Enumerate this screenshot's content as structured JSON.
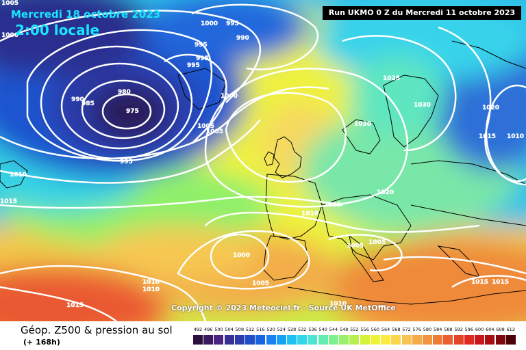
{
  "header": {
    "date": "Mercredi 18 octobre 2023",
    "local_time": "2:00 locale",
    "run_info": "Run UKMO 0 Z du Mercredi 11 octobre 2023"
  },
  "copyright": "Copyright © 2023 Meteociel.fr - Source UK MetOffice",
  "footer": {
    "field": "Géop. Z500 & pression au sol",
    "lead_time": "(+ 168h)"
  },
  "scale": {
    "labels": [
      "492",
      "496",
      "500",
      "504",
      "508",
      "512",
      "516",
      "520",
      "524",
      "528",
      "532",
      "536",
      "540",
      "544",
      "548",
      "552",
      "556",
      "560",
      "564",
      "568",
      "572",
      "576",
      "580",
      "584",
      "588",
      "592",
      "596",
      "600",
      "604",
      "608",
      "612"
    ],
    "colors": [
      "#2a0f3c",
      "#3a1a5e",
      "#4b2380",
      "#3a2f95",
      "#2b3cac",
      "#1f4fc8",
      "#1a63e0",
      "#1a82f0",
      "#16a2f4",
      "#1fc0f2",
      "#35d6ea",
      "#4fe3d2",
      "#63ebb2",
      "#7df08f",
      "#9af06c",
      "#b8f050",
      "#d6f23c",
      "#eef238",
      "#fbea40",
      "#fad64c",
      "#f7c352",
      "#f4ab4a",
      "#f19440",
      "#ee7c38",
      "#ea6030",
      "#e54428",
      "#dc2a22",
      "#c8161c",
      "#a80d14",
      "#7c060c",
      "#4a0206"
    ]
  },
  "isobars": [
    {
      "id": "1000-w",
      "value": "1000"
    },
    {
      "id": "1005-nw",
      "value": "1005"
    },
    {
      "id": "1000-n",
      "value": "1000"
    },
    {
      "id": "995-n1",
      "value": "995"
    },
    {
      "id": "990-n",
      "value": "990"
    },
    {
      "id": "995-n2",
      "value": "995"
    },
    {
      "id": "995-n3",
      "value": "995"
    },
    {
      "id": "995-n4",
      "value": "995"
    },
    {
      "id": "990-low",
      "value": "990"
    },
    {
      "id": "985-low",
      "value": "985"
    },
    {
      "id": "980-low",
      "value": "980"
    },
    {
      "id": "975-low",
      "value": "975"
    },
    {
      "id": "1000-mid",
      "value": "1000"
    },
    {
      "id": "1005-mid1",
      "value": "1005"
    },
    {
      "id": "1005-mid2",
      "value": "1005"
    },
    {
      "id": "995-sw",
      "value": "995"
    },
    {
      "id": "1010-w",
      "value": "1010"
    },
    {
      "id": "1015-w",
      "value": "1015"
    },
    {
      "id": "1025-scand",
      "value": "1025"
    },
    {
      "id": "1030-scand1",
      "value": "1030"
    },
    {
      "id": "1030-scand2",
      "value": "1030"
    },
    {
      "id": "1020-e",
      "value": "1020"
    },
    {
      "id": "1015-e",
      "value": "1015"
    },
    {
      "id": "1010-e",
      "value": "1010"
    },
    {
      "id": "1020-c",
      "value": "1020"
    },
    {
      "id": "1015-c",
      "value": "1015"
    },
    {
      "id": "1010-c",
      "value": "1010"
    },
    {
      "id": "1005-med1",
      "value": "1005"
    },
    {
      "id": "1005-med2",
      "value": "1005"
    },
    {
      "id": "1000-iberia",
      "value": "1000"
    },
    {
      "id": "1005-iberia",
      "value": "1005"
    },
    {
      "id": "1010-sw1",
      "value": "1010"
    },
    {
      "id": "1010-sw2",
      "value": "1010"
    },
    {
      "id": "1015-sw",
      "value": "1015"
    },
    {
      "id": "1010-afr",
      "value": "1010"
    },
    {
      "id": "1015-se1",
      "value": "1015"
    },
    {
      "id": "1015-se2",
      "value": "1015"
    }
  ]
}
